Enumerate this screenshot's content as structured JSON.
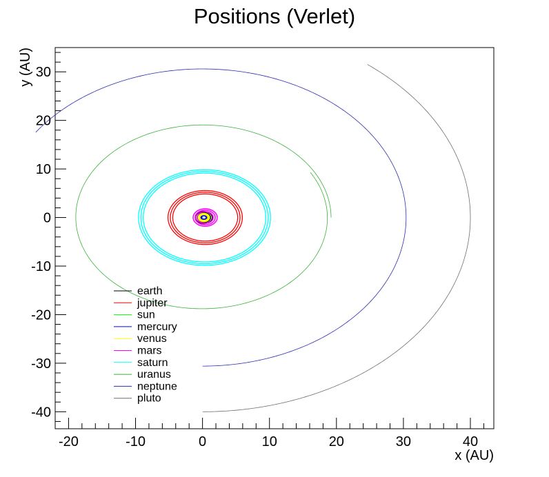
{
  "chart_data": {
    "type": "line",
    "title": "Positions (Verlet)",
    "xlabel": "x (AU)",
    "ylabel": "y (AU)",
    "xlim": [
      -22,
      43.5
    ],
    "ylim": [
      -43.5,
      35
    ],
    "xticks": [
      -20,
      -10,
      0,
      10,
      20,
      30,
      40
    ],
    "yticks": [
      -40,
      -30,
      -20,
      -10,
      0,
      10,
      20,
      30
    ],
    "xtick_labels": [
      "-20",
      "-10",
      "0",
      "10",
      "20",
      "30",
      "40"
    ],
    "ytick_labels": [
      "-40",
      "-30",
      "-20",
      "-10",
      "0",
      "10",
      "20",
      "30"
    ],
    "grid": false,
    "legend_position": "lower-left",
    "series": [
      {
        "name": "earth",
        "color": "#000000",
        "cx": 0.2,
        "cy": 0.0,
        "rx": 1.0,
        "ry": 1.0,
        "start_deg": 0,
        "end_deg": 360,
        "band": 0.25,
        "width": 1.5
      },
      {
        "name": "jupiter",
        "color": "#ff0000",
        "cx": 0.4,
        "cy": 0.0,
        "rx": 5.2,
        "ry": 5.2,
        "start_deg": 0,
        "end_deg": 360,
        "band": 0.35,
        "width": 1.3
      },
      {
        "name": "sun",
        "color": "#00ff00",
        "cx": 0.0,
        "cy": 0.0,
        "rx": 0.05,
        "ry": 0.05,
        "start_deg": 0,
        "end_deg": 360,
        "band": 0.0,
        "width": 1.0
      },
      {
        "name": "mercury",
        "color": "#0000ff",
        "cx": 0.2,
        "cy": 0.0,
        "rx": 0.4,
        "ry": 0.4,
        "start_deg": 0,
        "end_deg": 360,
        "band": 0.05,
        "width": 1.5
      },
      {
        "name": "venus",
        "color": "#ffff00",
        "cx": 0.2,
        "cy": 0.0,
        "rx": 0.72,
        "ry": 0.72,
        "start_deg": 0,
        "end_deg": 360,
        "band": 0.1,
        "width": 2.0
      },
      {
        "name": "mars",
        "color": "#ff00ff",
        "cx": 0.4,
        "cy": 0.0,
        "rx": 1.5,
        "ry": 1.5,
        "start_deg": 0,
        "end_deg": 360,
        "band": 0.3,
        "width": 1.5
      },
      {
        "name": "saturn",
        "color": "#00ffff",
        "cx": 0.3,
        "cy": 0.0,
        "rx": 9.5,
        "ry": 9.5,
        "start_deg": 0,
        "end_deg": 360,
        "band": 0.35,
        "width": 1.3
      },
      {
        "name": "uranus",
        "color": "#36b336",
        "cx": 0.0,
        "cy": 0.0,
        "rx": 19.2,
        "ry": 19.2,
        "start_deg": 0,
        "end_deg": 390,
        "band": 0.0,
        "width": 0.8
      },
      {
        "name": "neptune",
        "color": "#2b2bb3",
        "cx": 0.0,
        "cy": 0.0,
        "rx": 30.4,
        "ry": 30.6,
        "start_deg": -90,
        "end_deg": 145,
        "band": 0.0,
        "width": 0.8
      },
      {
        "name": "pluto",
        "color": "#6e6e6e",
        "cx": 0.0,
        "cy": 0.0,
        "rx": 40.0,
        "ry": 40.0,
        "start_deg": -90,
        "end_deg": 52,
        "band": 0.0,
        "width": 0.8
      }
    ]
  }
}
